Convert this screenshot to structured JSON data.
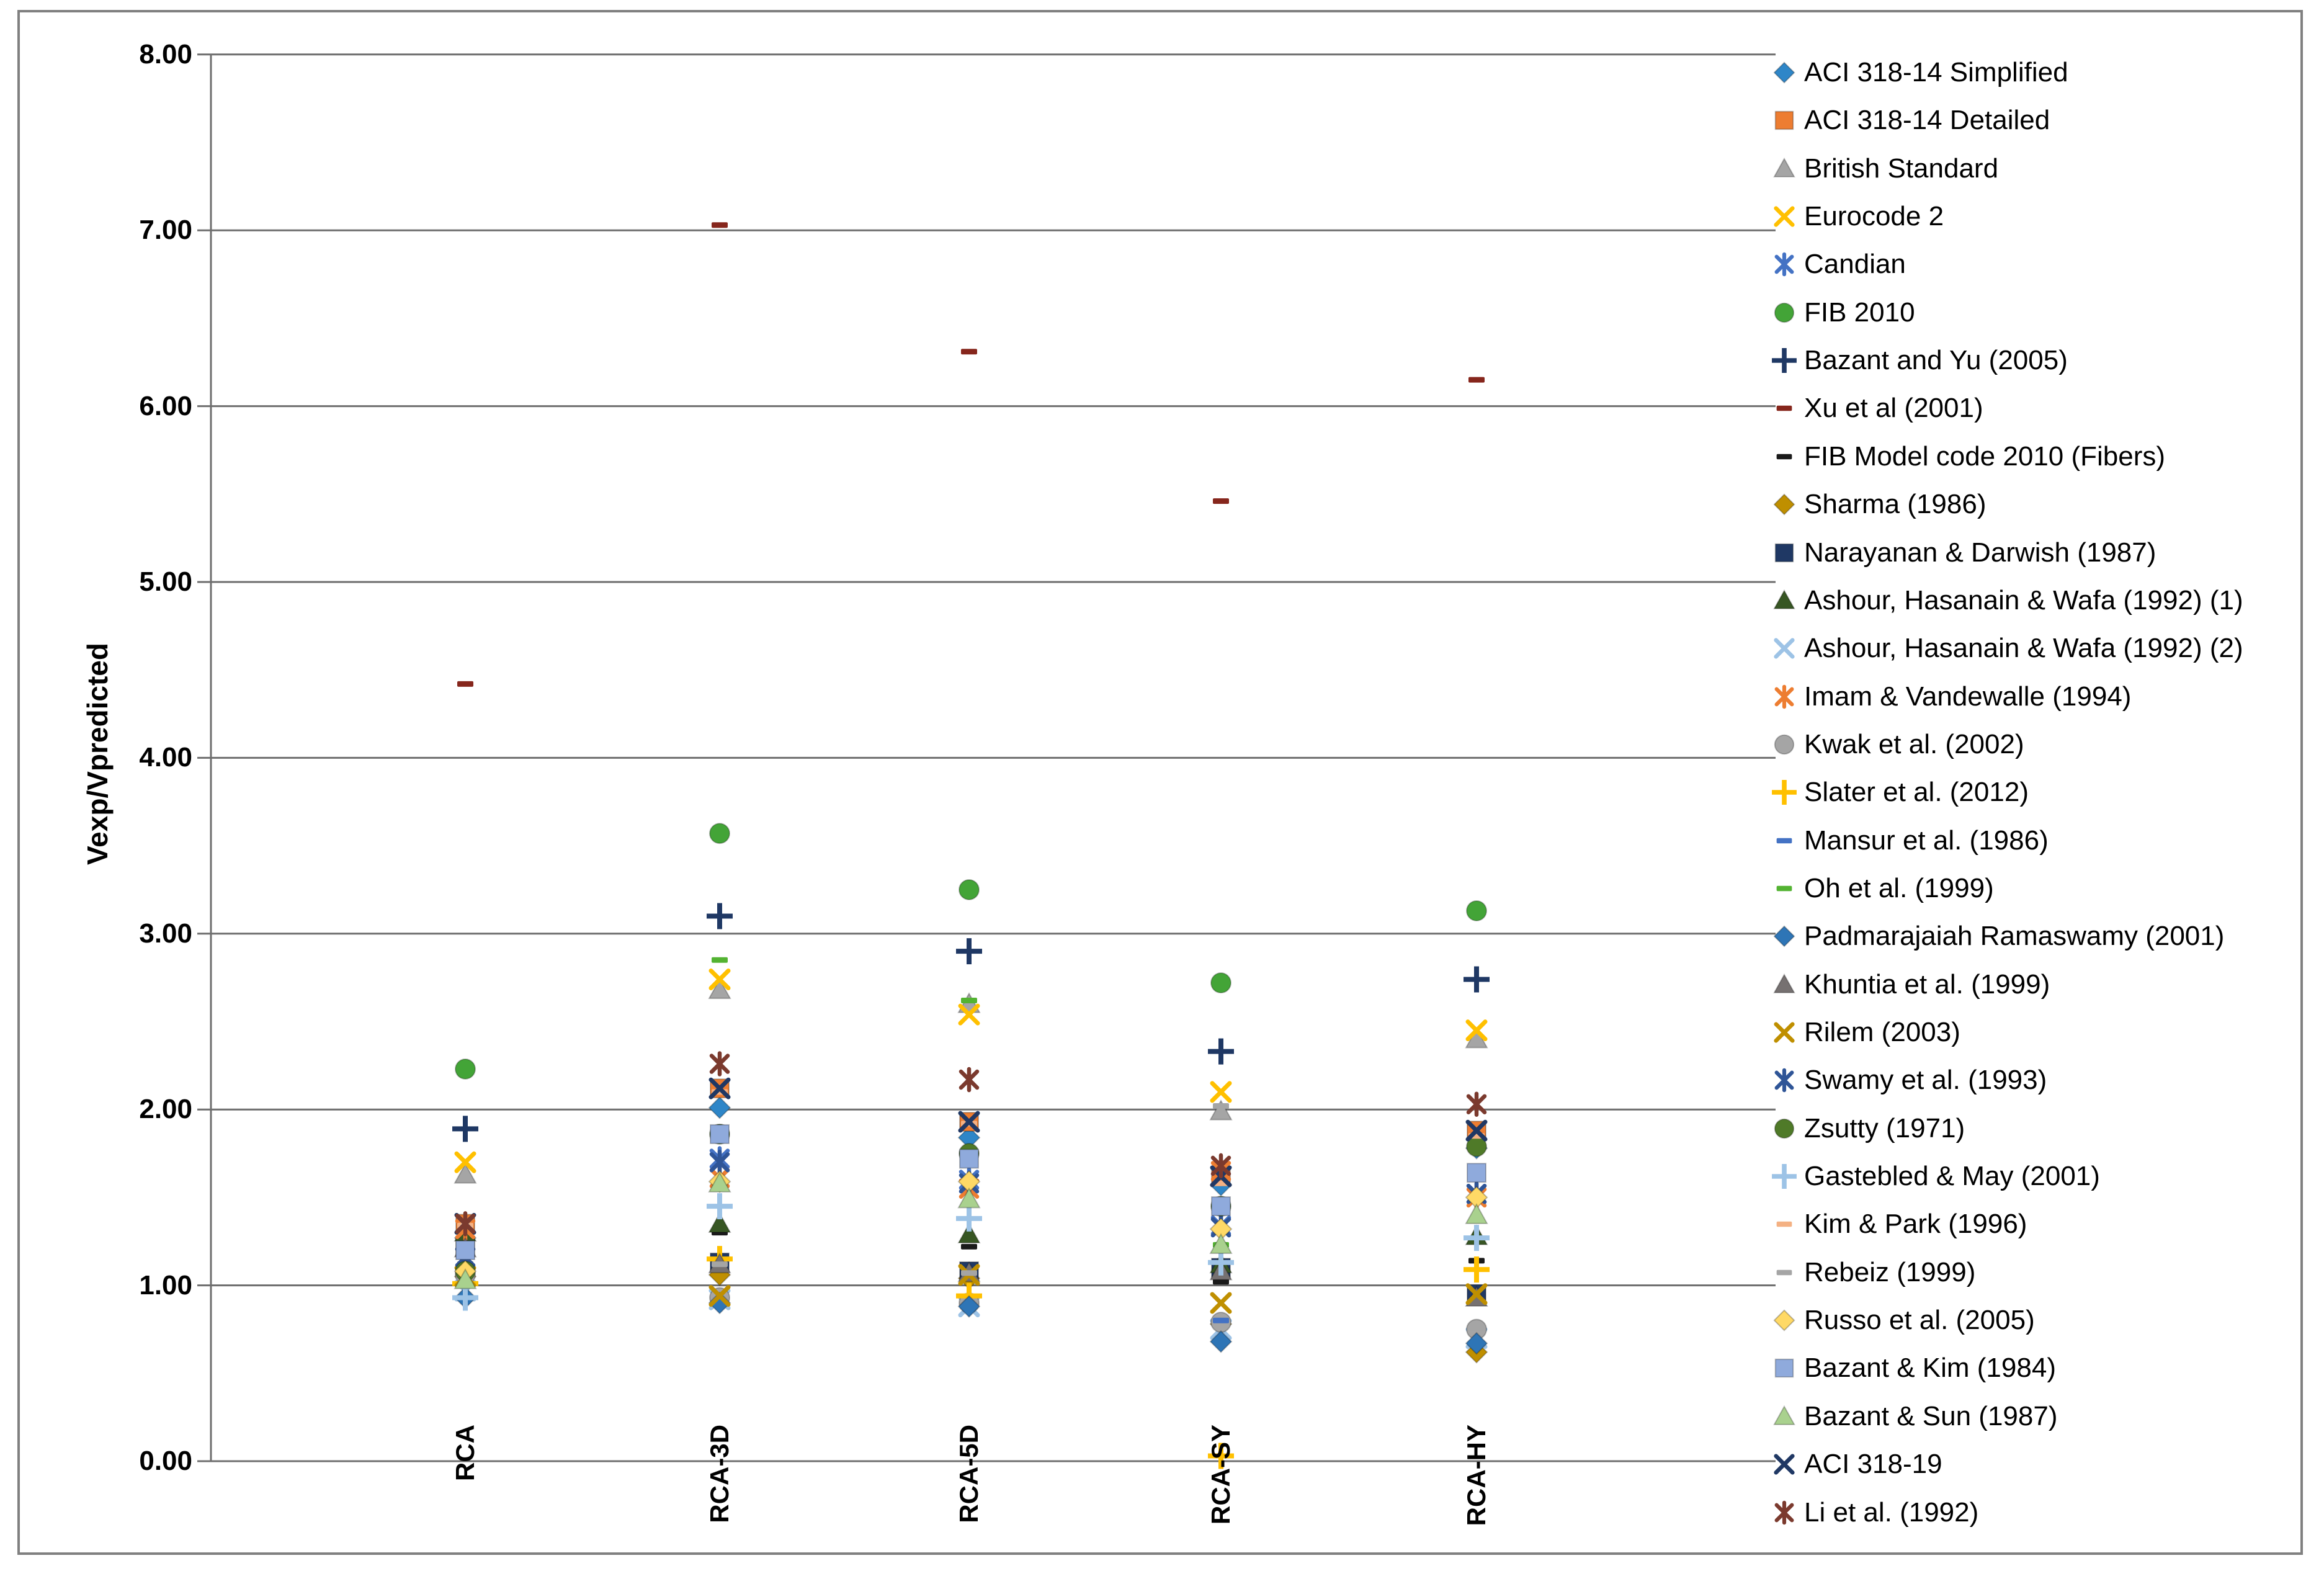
{
  "chart_data": {
    "type": "scatter",
    "title": "",
    "xlabel": "",
    "ylabel": "Vexp/Vpredicted",
    "categories": [
      "RCA",
      "RCA-3D",
      "RCA-5D",
      "RCA-SY",
      "RCA-HY"
    ],
    "ylim": [
      0,
      8
    ],
    "ytick_step": 1,
    "ytick_labels": [
      "0.00",
      "1.00",
      "2.00",
      "3.00",
      "4.00",
      "5.00",
      "6.00",
      "7.00",
      "8.00"
    ],
    "grid": "horizontal",
    "legend_position": "right",
    "colors": {
      "gridline": "#6E6E6E",
      "frame": "#808080",
      "text": "#000000"
    },
    "series": [
      {
        "name": "ACI 318-14 Simplified",
        "marker": "diamond",
        "color": "#2E86C8",
        "values": [
          1.27,
          2.01,
          1.84,
          1.57,
          1.78
        ]
      },
      {
        "name": "ACI 318-14 Detailed",
        "marker": "square",
        "color": "#ED7D31",
        "values": [
          1.35,
          2.12,
          1.93,
          1.62,
          1.88
        ]
      },
      {
        "name": "British Standard",
        "marker": "triangle",
        "color": "#A5A5A5",
        "values": [
          1.63,
          2.68,
          2.6,
          1.99,
          2.4
        ]
      },
      {
        "name": "Eurocode 2",
        "marker": "x",
        "color": "#FFC000",
        "values": [
          1.7,
          2.74,
          2.54,
          2.1,
          2.45
        ]
      },
      {
        "name": "Candian",
        "marker": "asterisk",
        "color": "#4472C4",
        "values": [
          1.16,
          1.72,
          1.6,
          1.34,
          1.52
        ]
      },
      {
        "name": "FIB 2010",
        "marker": "circle",
        "color": "#43A437",
        "values": [
          2.23,
          3.57,
          3.25,
          2.72,
          3.13
        ]
      },
      {
        "name": "Bazant and Yu (2005)",
        "marker": "plus",
        "color": "#1F3864",
        "values": [
          1.89,
          3.1,
          2.9,
          2.33,
          2.74
        ]
      },
      {
        "name": "Xu et al (2001)",
        "marker": "dash",
        "color": "#86261C",
        "values": [
          4.42,
          7.03,
          6.31,
          5.46,
          6.15
        ]
      },
      {
        "name": "FIB Model code 2010 (Fibers)",
        "marker": "dash",
        "color": "#1A1A1A",
        "values": [
          1.12,
          1.3,
          1.22,
          1.02,
          1.14
        ]
      },
      {
        "name": "Sharma (1986)",
        "marker": "diamond",
        "color": "#BF8F00",
        "values": [
          1.05,
          1.06,
          1.04,
          0.78,
          0.62
        ]
      },
      {
        "name": "Narayanan & Darwish (1987)",
        "marker": "square",
        "color": "#1F3864",
        "values": [
          1.22,
          1.13,
          1.08,
          1.1,
          0.95
        ]
      },
      {
        "name": "Ashour, Hasanain & Wafa (1992) (1)",
        "marker": "triangle",
        "color": "#375623",
        "values": [
          1.3,
          1.35,
          1.29,
          1.12,
          1.28
        ]
      },
      {
        "name": "Ashour, Hasanain & Wafa (1992) (2)",
        "marker": "x",
        "color": "#9DC3E6",
        "values": [
          0.97,
          0.92,
          0.88,
          0.75,
          0.7
        ]
      },
      {
        "name": "Imam & Vandewalle (1994)",
        "marker": "asterisk",
        "color": "#ED7D31",
        "values": [
          1.32,
          1.61,
          1.55,
          1.65,
          1.5
        ]
      },
      {
        "name": "Kwak et al. (2002)",
        "marker": "circle",
        "color": "#A5A5A5",
        "values": [
          1.06,
          0.93,
          0.9,
          0.79,
          0.75
        ]
      },
      {
        "name": "Slater et al. (2012)",
        "marker": "plus",
        "color": "#FFC000",
        "values": [
          1.01,
          1.15,
          0.94,
          0.03,
          1.09
        ]
      },
      {
        "name": "Mansur et al. (1986)",
        "marker": "dash",
        "color": "#4472C4",
        "values": [
          1.18,
          1.84,
          1.7,
          0.8,
          1.62
        ]
      },
      {
        "name": "Oh et al. (1999)",
        "marker": "dash",
        "color": "#53B332",
        "values": [
          1.19,
          2.85,
          2.62,
          1.23,
          1.8
        ]
      },
      {
        "name": "Padmarajaiah Ramaswamy (2001)",
        "marker": "diamond",
        "color": "#2E75B6",
        "values": [
          0.93,
          0.9,
          0.88,
          0.68,
          0.67
        ]
      },
      {
        "name": "Khuntia et al. (1999)",
        "marker": "triangle",
        "color": "#767171",
        "values": [
          1.21,
          1.12,
          1.07,
          1.08,
          0.93
        ]
      },
      {
        "name": "Rilem (2003)",
        "marker": "x",
        "color": "#BF8F00",
        "values": [
          1.05,
          0.94,
          1.06,
          0.9,
          0.95
        ]
      },
      {
        "name": "Swamy et al. (1993)",
        "marker": "asterisk",
        "color": "#2F5597",
        "values": [
          1.16,
          1.7,
          1.58,
          1.33,
          1.52
        ]
      },
      {
        "name": "Zsutty (1971)",
        "marker": "circle",
        "color": "#4F7A28",
        "values": [
          1.08,
          1.86,
          1.75,
          1.45,
          1.79
        ]
      },
      {
        "name": "Gastebled & May (2001)",
        "marker": "plus",
        "color": "#9DC3E6",
        "values": [
          0.93,
          1.45,
          1.38,
          1.13,
          1.27
        ]
      },
      {
        "name": "Kim & Park (1996)",
        "marker": "dash",
        "color": "#F4B183",
        "values": [
          1.34,
          2.1,
          1.92,
          1.58,
          1.85
        ]
      },
      {
        "name": "Rebeiz (1999)",
        "marker": "dash",
        "color": "#A5A5A5",
        "values": [
          1.17,
          1.12,
          1.07,
          2.02,
          0.76
        ]
      },
      {
        "name": "Russo et al. (2005)",
        "marker": "diamond",
        "color": "#FFD966",
        "values": [
          1.08,
          1.59,
          1.59,
          1.32,
          1.5
        ]
      },
      {
        "name": "Bazant & Kim (1984)",
        "marker": "square",
        "color": "#8FAADC",
        "values": [
          1.2,
          1.86,
          1.72,
          1.45,
          1.64
        ]
      },
      {
        "name": "Bazant & Sun (1987)",
        "marker": "triangle",
        "color": "#A9D18E",
        "values": [
          1.03,
          1.58,
          1.49,
          1.23,
          1.4
        ]
      },
      {
        "name": "ACI 318-19",
        "marker": "x",
        "color": "#203864",
        "values": [
          1.35,
          2.12,
          1.93,
          1.62,
          1.88
        ]
      },
      {
        "name": "Li et al. (1992)",
        "marker": "asterisk",
        "color": "#7B3A2E",
        "values": [
          1.35,
          2.26,
          2.17,
          1.68,
          2.03
        ]
      }
    ]
  }
}
